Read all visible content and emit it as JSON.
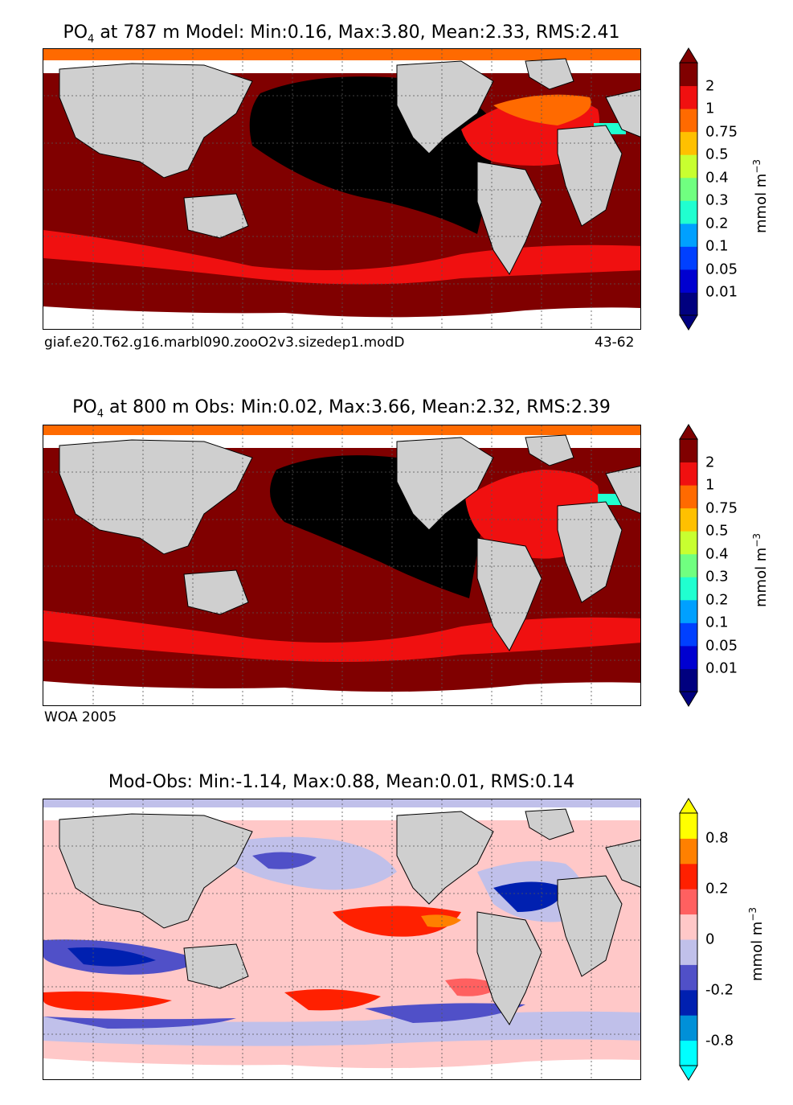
{
  "panels": [
    {
      "title_prefix": "PO",
      "title_sub": "4",
      "title_rest": " at 787 m Model: Min:0.16, Max:3.80, Mean:2.33, RMS:2.41",
      "footer_left": "giaf.e20.T62.g16.marbl090.zooO2v3.sizedep1.modD",
      "footer_right": "43-62",
      "units_base": "mmol m",
      "units_exp": "−3",
      "colorbar": {
        "colors": [
          "#00007f",
          "#0000d0",
          "#0040ff",
          "#00a0ff",
          "#20ffd0",
          "#70ff80",
          "#c8ff30",
          "#ffc000",
          "#ff6a00",
          "#f01010",
          "#800000"
        ],
        "extend_min": "#00007f",
        "extend_max": "#7f0000",
        "ticks": [
          "0.01",
          "0.05",
          "0.1",
          "0.2",
          "0.3",
          "0.4",
          "0.5",
          "0.75",
          "1",
          "2"
        ]
      }
    },
    {
      "title_prefix": "PO",
      "title_sub": "4",
      "title_rest": " at 800 m Obs: Min:0.02, Max:3.66, Mean:2.32, RMS:2.39",
      "footer_left": "WOA 2005",
      "footer_right": "",
      "units_base": "mmol m",
      "units_exp": "−3",
      "colorbar": {
        "colors": [
          "#00007f",
          "#0000d0",
          "#0040ff",
          "#00a0ff",
          "#20ffd0",
          "#70ff80",
          "#c8ff30",
          "#ffc000",
          "#ff6a00",
          "#f01010",
          "#800000"
        ],
        "extend_min": "#00007f",
        "extend_max": "#7f0000",
        "ticks": [
          "0.01",
          "0.05",
          "0.1",
          "0.2",
          "0.3",
          "0.4",
          "0.5",
          "0.75",
          "1",
          "2"
        ]
      }
    },
    {
      "title_prefix": "",
      "title_sub": "",
      "title_rest": "Mod-Obs: Min:-1.14, Max:0.88, Mean:0.01, RMS:0.14",
      "footer_left": "",
      "footer_right": "",
      "units_base": "mmol m",
      "units_exp": "−3",
      "colorbar": {
        "colors": [
          "#00ffff",
          "#0090d8",
          "#0020b0",
          "#5050c8",
          "#c0c0ea",
          "#ffc8c8",
          "#ff6060",
          "#ff2000",
          "#ff8000",
          "#ffff00"
        ],
        "extend_min": "#00ffff",
        "extend_max": "#ffff00",
        "ticks": [
          "-0.8",
          "-0.2",
          "0",
          "0.2",
          "0.8"
        ]
      }
    }
  ],
  "map_colors": {
    "land": "#cfcfcf",
    "nodata": "#ffffff",
    "grid": "#555555"
  }
}
